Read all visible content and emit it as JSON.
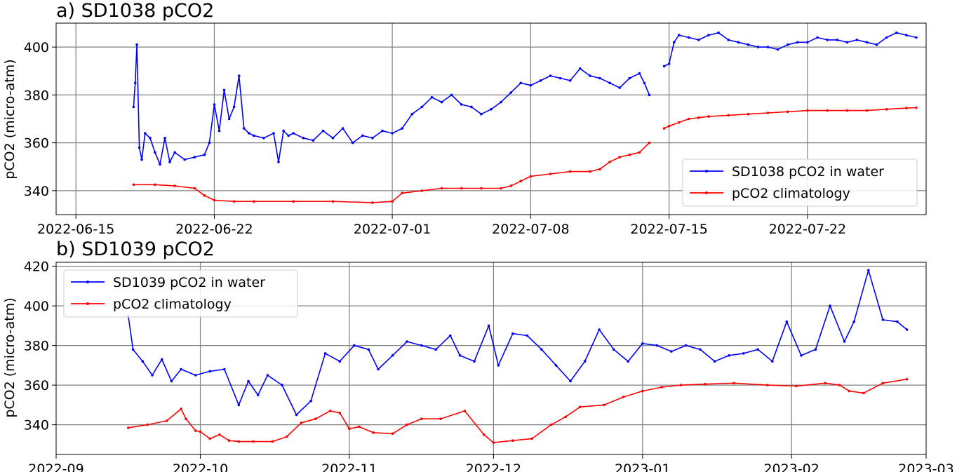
{
  "colors": {
    "water": "#0000ff",
    "clim": "#ff0000",
    "grid": "#808080"
  },
  "chart_data": [
    {
      "type": "line",
      "title": "a) SD1038 pCO2",
      "ylabel": "pCO2 (micro-atm)",
      "xlabel": "",
      "ylim": [
        330,
        410
      ],
      "xlim": [
        "2022-06-14",
        "2022-07-28"
      ],
      "grid": true,
      "legend": "lower-right",
      "xticks": [
        "2022-06-15",
        "2022-06-22",
        "2022-07-01",
        "2022-07-08",
        "2022-07-15",
        "2022-07-22"
      ],
      "yticks": [
        340,
        360,
        380,
        400
      ],
      "series": [
        {
          "name": "SD1038 pCO2 in water",
          "color": "#0000ff",
          "segments": [
            {
              "x": [
                "2022-06-17 22:00",
                "2022-06-18 00:00",
                "2022-06-18 02:00",
                "2022-06-18 05:00",
                "2022-06-18 08:00",
                "2022-06-18 12:00",
                "2022-06-18 18:00",
                "2022-06-19 00:00",
                "2022-06-19 06:00",
                "2022-06-19 12:00",
                "2022-06-19 18:00",
                "2022-06-20 00:00",
                "2022-06-20 12:00",
                "2022-06-21 00:00",
                "2022-06-21 12:00",
                "2022-06-21 18:00",
                "2022-06-22 00:00",
                "2022-06-22 06:00",
                "2022-06-22 12:00",
                "2022-06-22 18:00",
                "2022-06-23 00:00",
                "2022-06-23 06:00",
                "2022-06-23 12:00",
                "2022-06-23 18:00",
                "2022-06-24 00:00",
                "2022-06-24 12:00",
                "2022-06-25 00:00",
                "2022-06-25 06:00",
                "2022-06-25 12:00",
                "2022-06-25 18:00",
                "2022-06-26 00:00",
                "2022-06-26 12:00",
                "2022-06-27 00:00",
                "2022-06-27 12:00",
                "2022-06-28 00:00",
                "2022-06-28 12:00",
                "2022-06-29 00:00",
                "2022-06-29 12:00",
                "2022-06-30 00:00",
                "2022-06-30 12:00",
                "2022-07-01 00:00",
                "2022-07-01 12:00",
                "2022-07-02 00:00",
                "2022-07-02 12:00",
                "2022-07-03 00:00",
                "2022-07-03 12:00",
                "2022-07-04 00:00",
                "2022-07-04 12:00",
                "2022-07-05 00:00",
                "2022-07-05 12:00",
                "2022-07-06 00:00",
                "2022-07-06 12:00",
                "2022-07-07 00:00",
                "2022-07-07 12:00",
                "2022-07-08 00:00",
                "2022-07-08 12:00",
                "2022-07-09 00:00",
                "2022-07-09 12:00",
                "2022-07-10 00:00",
                "2022-07-10 12:00",
                "2022-07-11 00:00",
                "2022-07-11 12:00",
                "2022-07-12 00:00",
                "2022-07-12 12:00",
                "2022-07-13 00:00",
                "2022-07-13 12:00",
                "2022-07-13 18:00",
                "2022-07-14 00:00"
              ],
              "y": [
                375,
                385,
                401,
                358,
                353,
                364,
                362,
                356,
                351,
                362,
                352,
                356,
                353,
                354,
                355,
                360,
                376,
                365,
                382,
                370,
                375,
                388,
                366,
                364,
                363,
                362,
                364,
                352,
                365,
                363,
                364,
                362,
                361,
                365,
                362,
                366,
                360,
                363,
                362,
                365,
                364,
                366,
                372,
                375,
                379,
                377,
                380,
                376,
                375,
                372,
                374,
                377,
                381,
                385,
                384,
                386,
                388,
                387,
                386,
                391,
                388,
                387,
                385,
                383,
                387,
                389,
                385,
                380
              ]
            },
            {
              "x": [
                "2022-07-14 18:00",
                "2022-07-15 00:00",
                "2022-07-15 06:00",
                "2022-07-15 12:00",
                "2022-07-16 00:00",
                "2022-07-16 12:00",
                "2022-07-17 00:00",
                "2022-07-17 12:00",
                "2022-07-18 00:00",
                "2022-07-18 12:00",
                "2022-07-19 00:00",
                "2022-07-19 12:00",
                "2022-07-20 00:00",
                "2022-07-20 12:00",
                "2022-07-21 00:00",
                "2022-07-21 12:00",
                "2022-07-22 00:00",
                "2022-07-22 12:00",
                "2022-07-23 00:00",
                "2022-07-23 12:00",
                "2022-07-24 00:00",
                "2022-07-24 12:00",
                "2022-07-25 00:00",
                "2022-07-25 12:00",
                "2022-07-26 00:00",
                "2022-07-26 12:00",
                "2022-07-27 00:00",
                "2022-07-27 12:00"
              ],
              "y": [
                392,
                393,
                402,
                405,
                404,
                403,
                405,
                406,
                403,
                402,
                401,
                400,
                400,
                399,
                401,
                402,
                402,
                404,
                403,
                403,
                402,
                403,
                402,
                401,
                404,
                406,
                405,
                404
              ]
            }
          ]
        },
        {
          "name": "pCO2 climatology",
          "color": "#ff0000",
          "segments": [
            {
              "x": [
                "2022-06-17 22:00",
                "2022-06-19 00:00",
                "2022-06-20 00:00",
                "2022-06-21 00:00",
                "2022-06-21 12:00",
                "2022-06-22 00:00",
                "2022-06-23 00:00",
                "2022-06-24 00:00",
                "2022-06-26 00:00",
                "2022-06-28 00:00",
                "2022-06-30 00:00",
                "2022-07-01 00:00",
                "2022-07-01 12:00",
                "2022-07-02 12:00",
                "2022-07-03 12:00",
                "2022-07-04 12:00",
                "2022-07-05 12:00",
                "2022-07-06 12:00",
                "2022-07-07 00:00",
                "2022-07-07 12:00",
                "2022-07-08 00:00",
                "2022-07-09 00:00",
                "2022-07-10 00:00",
                "2022-07-11 00:00",
                "2022-07-11 12:00",
                "2022-07-12 00:00",
                "2022-07-12 12:00",
                "2022-07-13 00:00",
                "2022-07-13 12:00",
                "2022-07-14 00:00"
              ],
              "y": [
                342.5,
                342.5,
                342,
                341,
                338,
                336,
                335.5,
                335.5,
                335.5,
                335.5,
                335,
                335.5,
                339,
                340,
                341,
                341,
                341,
                341,
                342,
                344,
                346,
                347,
                348,
                348,
                349,
                352,
                354,
                355,
                356,
                360
              ]
            },
            {
              "x": [
                "2022-07-14 18:00",
                "2022-07-15 00:00",
                "2022-07-15 12:00",
                "2022-07-16 00:00",
                "2022-07-16 12:00",
                "2022-07-17 00:00",
                "2022-07-18 00:00",
                "2022-07-19 00:00",
                "2022-07-20 00:00",
                "2022-07-21 00:00",
                "2022-07-22 00:00",
                "2022-07-23 00:00",
                "2022-07-24 00:00",
                "2022-07-25 00:00",
                "2022-07-26 00:00",
                "2022-07-27 00:00",
                "2022-07-27 12:00"
              ],
              "y": [
                366,
                367,
                368.5,
                370,
                370.5,
                371,
                371.5,
                372,
                372.5,
                373,
                373.5,
                373.5,
                373.5,
                373.5,
                374,
                374.5,
                374.7
              ]
            }
          ]
        }
      ]
    },
    {
      "type": "line",
      "title": "b) SD1039 pCO2",
      "ylabel": "pCO2 (micro-atm)",
      "xlabel": "",
      "ylim": [
        325,
        422
      ],
      "xlim": [
        "2022-09-01",
        "2023-03-01"
      ],
      "grid": true,
      "legend": "upper-left",
      "xticks": [
        "2022-09",
        "2022-10",
        "2022-11",
        "2022-12",
        "2023-01",
        "2023-02",
        "2023-03"
      ],
      "yticks": [
        340,
        360,
        380,
        400,
        420
      ],
      "series": [
        {
          "name": "SD1039 pCO2 in water",
          "color": "#0000ff",
          "segments": [
            {
              "x": [
                "2022-09-16",
                "2022-09-17",
                "2022-09-19",
                "2022-09-21",
                "2022-09-23",
                "2022-09-25",
                "2022-09-27",
                "2022-09-30",
                "2022-10-03",
                "2022-10-06",
                "2022-10-09",
                "2022-10-11",
                "2022-10-13",
                "2022-10-15",
                "2022-10-18",
                "2022-10-21",
                "2022-10-24",
                "2022-10-27",
                "2022-10-30",
                "2022-11-02",
                "2022-11-05",
                "2022-11-07",
                "2022-11-10",
                "2022-11-13",
                "2022-11-16",
                "2022-11-19",
                "2022-11-22",
                "2022-11-24",
                "2022-11-27",
                "2022-11-30",
                "2022-12-02",
                "2022-12-05",
                "2022-12-08",
                "2022-12-11",
                "2022-12-14",
                "2022-12-17",
                "2022-12-20",
                "2022-12-23",
                "2022-12-26",
                "2022-12-29",
                "2023-01-01",
                "2023-01-04",
                "2023-01-07",
                "2023-01-10",
                "2023-01-13",
                "2023-01-16",
                "2023-01-19",
                "2023-01-22",
                "2023-01-25",
                "2023-01-28",
                "2023-01-31",
                "2023-02-03",
                "2023-02-06",
                "2023-02-09",
                "2023-02-12",
                "2023-02-14",
                "2023-02-17",
                "2023-02-20",
                "2023-02-23",
                "2023-02-25"
              ],
              "y": [
                395,
                378,
                372,
                365,
                373,
                362,
                368,
                365,
                367,
                368,
                350,
                362,
                355,
                365,
                360,
                345,
                352,
                376,
                372,
                380,
                378,
                368,
                375,
                382,
                380,
                378,
                385,
                375,
                372,
                390,
                370,
                386,
                385,
                378,
                370,
                362,
                372,
                388,
                378,
                372,
                381,
                380,
                377,
                380,
                378,
                372,
                375,
                376,
                378,
                372,
                392,
                375,
                378,
                400,
                382,
                392,
                418,
                393,
                392,
                388
              ]
            }
          ]
        },
        {
          "name": "pCO2 climatology",
          "color": "#ff0000",
          "segments": [
            {
              "x": [
                "2022-09-16",
                "2022-09-20",
                "2022-09-24",
                "2022-09-27",
                "2022-09-28",
                "2022-09-30",
                "2022-10-01",
                "2022-10-03",
                "2022-10-05",
                "2022-10-07",
                "2022-10-09",
                "2022-10-12",
                "2022-10-16",
                "2022-10-19",
                "2022-10-22",
                "2022-10-25",
                "2022-10-28",
                "2022-10-30",
                "2022-11-01",
                "2022-11-03",
                "2022-11-06",
                "2022-11-10",
                "2022-11-13",
                "2022-11-16",
                "2022-11-20",
                "2022-11-25",
                "2022-11-29",
                "2022-12-01",
                "2022-12-05",
                "2022-12-09",
                "2022-12-13",
                "2022-12-16",
                "2022-12-19",
                "2022-12-24",
                "2022-12-28",
                "2023-01-01",
                "2023-01-05",
                "2023-01-09",
                "2023-01-14",
                "2023-01-20",
                "2023-01-27",
                "2023-02-02",
                "2023-02-08",
                "2023-02-11",
                "2023-02-13",
                "2023-02-16",
                "2023-02-20",
                "2023-02-25"
              ],
              "y": [
                338.5,
                340,
                342,
                348,
                343,
                337,
                336.5,
                333,
                335,
                332,
                331.5,
                331.5,
                331.5,
                334,
                341,
                343,
                347,
                346,
                338,
                339,
                336,
                335.5,
                340,
                343,
                343,
                347,
                335,
                331,
                332,
                333,
                340,
                344,
                349,
                350,
                354,
                357,
                359,
                360,
                360.5,
                361,
                360,
                359.5,
                361,
                360,
                357,
                356,
                361,
                363
              ]
            }
          ]
        }
      ]
    }
  ]
}
